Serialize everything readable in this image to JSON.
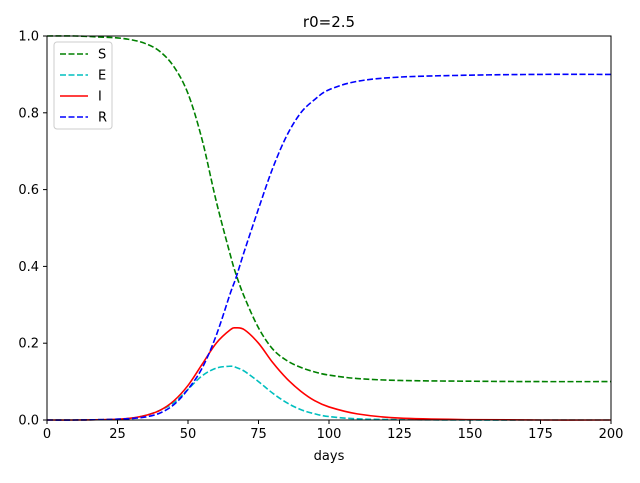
{
  "chart_data": {
    "type": "line",
    "title": "r0=2.5",
    "xlabel": "days",
    "ylabel": "",
    "xlim": [
      0,
      200
    ],
    "ylim": [
      0,
      1
    ],
    "xticks": [
      0,
      25,
      50,
      75,
      100,
      125,
      150,
      175,
      200
    ],
    "yticks": [
      0.0,
      0.2,
      0.4,
      0.6,
      0.8,
      1.0
    ],
    "xtick_labels": [
      "0",
      "25",
      "50",
      "75",
      "100",
      "125",
      "150",
      "175",
      "200"
    ],
    "ytick_labels": [
      "0.0",
      "0.2",
      "0.4",
      "0.6",
      "0.8",
      "1.0"
    ],
    "grid": false,
    "legend_position": "top-left",
    "x": [
      0,
      10,
      20,
      25,
      30,
      35,
      40,
      45,
      50,
      55,
      60,
      65,
      67,
      70,
      75,
      80,
      85,
      90,
      95,
      100,
      110,
      125,
      150,
      175,
      200
    ],
    "series": [
      {
        "name": "S",
        "color": "#008000",
        "dash": "dashed",
        "values": [
          1.0,
          1.0,
          0.997,
          0.995,
          0.99,
          0.98,
          0.96,
          0.92,
          0.85,
          0.73,
          0.57,
          0.43,
          0.38,
          0.32,
          0.24,
          0.185,
          0.155,
          0.137,
          0.125,
          0.117,
          0.108,
          0.103,
          0.101,
          0.1,
          0.1
        ]
      },
      {
        "name": "E",
        "color": "#00bfbf",
        "dash": "dashed",
        "values": [
          0.0,
          0.0,
          0.001,
          0.002,
          0.005,
          0.012,
          0.025,
          0.045,
          0.08,
          0.115,
          0.135,
          0.14,
          0.137,
          0.127,
          0.1,
          0.07,
          0.045,
          0.027,
          0.016,
          0.009,
          0.003,
          0.001,
          0.0,
          0.0,
          0.0
        ]
      },
      {
        "name": "I",
        "color": "#ff0000",
        "dash": "solid",
        "values": [
          0.0,
          0.0,
          0.001,
          0.002,
          0.005,
          0.012,
          0.025,
          0.05,
          0.09,
          0.145,
          0.2,
          0.235,
          0.24,
          0.235,
          0.2,
          0.15,
          0.108,
          0.075,
          0.05,
          0.034,
          0.016,
          0.005,
          0.001,
          0.0,
          0.0
        ]
      },
      {
        "name": "R",
        "color": "#0000ff",
        "dash": "dashed",
        "values": [
          0.0,
          0.0,
          0.001,
          0.002,
          0.004,
          0.008,
          0.018,
          0.04,
          0.08,
          0.135,
          0.22,
          0.33,
          0.37,
          0.44,
          0.55,
          0.655,
          0.74,
          0.8,
          0.835,
          0.86,
          0.882,
          0.893,
          0.898,
          0.9,
          0.9
        ]
      }
    ]
  }
}
